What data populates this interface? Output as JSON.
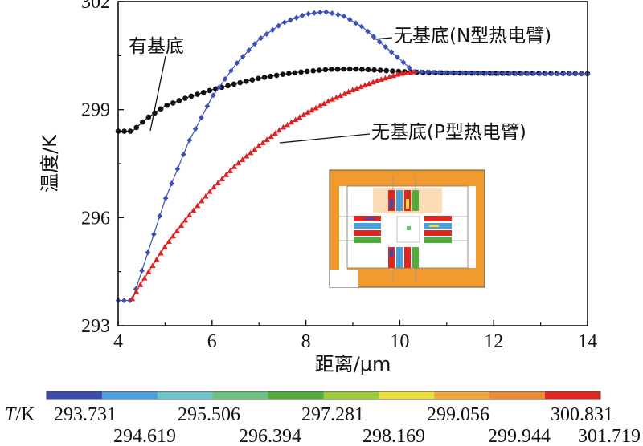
{
  "chart_data": {
    "type": "line",
    "xlabel": "距离/μm",
    "ylabel": "温度/K",
    "xlim": [
      4,
      14
    ],
    "ylim": [
      293,
      302
    ],
    "xticks": [
      "4",
      "6",
      "8",
      "10",
      "12",
      "14"
    ],
    "yticks": [
      "293",
      "296",
      "299",
      "302"
    ],
    "grid": false,
    "series": [
      {
        "name": "有基底",
        "color": "#111111",
        "marker": "circle",
        "x": [
          4.0,
          4.3,
          4.6,
          5.0,
          5.5,
          6.0,
          6.5,
          7.0,
          7.5,
          8.0,
          8.5,
          9.0,
          9.5,
          10.0,
          10.5,
          11.0,
          12.0,
          13.0,
          14.0
        ],
        "y": [
          298.4,
          298.4,
          298.75,
          299.1,
          299.35,
          299.55,
          299.72,
          299.87,
          299.98,
          300.06,
          300.12,
          300.13,
          300.1,
          300.06,
          300.03,
          300.02,
          300.01,
          300.01,
          300.0
        ]
      },
      {
        "name": "无基底(N型热电臂)",
        "color": "#3d4fb8",
        "marker": "diamond",
        "x": [
          4.0,
          4.3,
          4.5,
          5.0,
          5.5,
          6.0,
          6.5,
          7.0,
          7.5,
          8.0,
          8.4,
          8.8,
          9.2,
          9.6,
          10.0,
          10.3,
          11.0,
          12.0,
          13.0,
          14.0
        ],
        "y": [
          293.7,
          293.7,
          294.5,
          296.5,
          298.1,
          299.35,
          300.25,
          300.95,
          301.4,
          301.65,
          301.72,
          301.6,
          301.3,
          300.85,
          300.4,
          300.05,
          300.02,
          300.01,
          300.0,
          300.0
        ]
      },
      {
        "name": "无基底(P型热电臂)",
        "color": "#e02020",
        "marker": "triangle",
        "x": [
          4.3,
          4.5,
          5.0,
          5.5,
          6.0,
          6.5,
          7.0,
          7.5,
          8.0,
          8.5,
          9.0,
          9.5,
          10.0,
          10.3
        ],
        "y": [
          293.75,
          294.2,
          295.2,
          296.05,
          296.8,
          297.45,
          298.0,
          298.5,
          298.9,
          299.25,
          299.55,
          299.8,
          300.0,
          300.05
        ]
      }
    ],
    "annotations": [
      "有基底",
      "无基底(N型热电臂)",
      "无基底(P型热电臂)"
    ],
    "colorbar": {
      "label": "T/K",
      "ticks_top": [
        "293.731",
        "295.506",
        "297.281",
        "299.056",
        "300.831"
      ],
      "ticks_bottom": [
        "294.619",
        "296.394",
        "298.169",
        "299.944",
        "301.719"
      ],
      "colors": [
        "#3b4cae",
        "#4aa0dc",
        "#6fc4cc",
        "#6cc17e",
        "#52ad3a",
        "#9ccb3a",
        "#ece13a",
        "#f0a83a",
        "#ee8a2f",
        "#e0261f"
      ]
    }
  }
}
